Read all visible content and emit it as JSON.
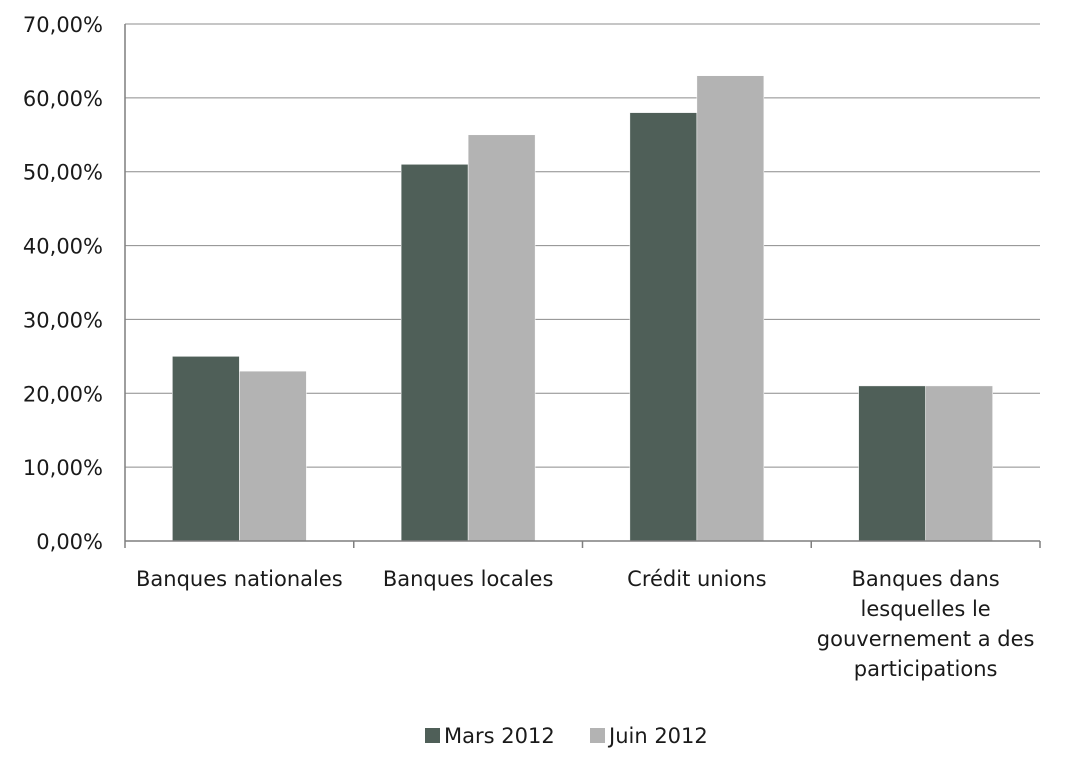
{
  "chart_data": {
    "type": "bar",
    "title": "",
    "xlabel": "",
    "ylabel": "",
    "categories": [
      [
        "Banques nationales"
      ],
      [
        "Banques locales"
      ],
      [
        "Crédit unions"
      ],
      [
        "Banques dans",
        "lesquelles le",
        "gouvernement a des",
        "participations"
      ]
    ],
    "series": [
      {
        "name": "Mars 2012",
        "values": [
          25,
          51,
          58,
          21
        ],
        "color": "#4f5f58"
      },
      {
        "name": "Juin 2012",
        "values": [
          23,
          55,
          63,
          21
        ],
        "color": "#b3b3b3"
      }
    ],
    "ylim": [
      0,
      70
    ],
    "yticks": [
      "0,00%",
      "10,00%",
      "20,00%",
      "30,00%",
      "40,00%",
      "50,00%",
      "60,00%",
      "70,00%"
    ],
    "grid": true,
    "legend_position": "bottom",
    "colors": {
      "grid": "#8c8c8c",
      "axis": "#7f7f7f"
    }
  }
}
